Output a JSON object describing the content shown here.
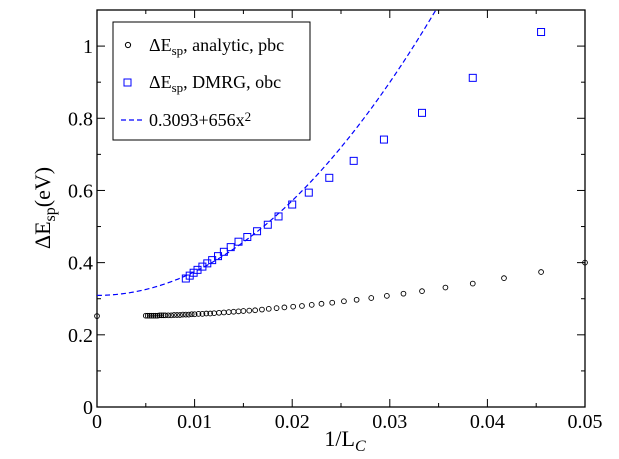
{
  "chart_data": {
    "type": "scatter",
    "xlabel": {
      "main": "1/L",
      "sub": "C"
    },
    "ylabel": {
      "main": "ΔE",
      "sub": "sp",
      "tail": "(eV)"
    },
    "xlim": [
      0,
      0.05
    ],
    "ylim": [
      0,
      1.1
    ],
    "xticks": [
      0,
      0.01,
      0.02,
      0.03,
      0.04,
      0.05
    ],
    "xtick_labels": [
      "0",
      "0.01",
      "0.02",
      "0.03",
      "0.04",
      "0.05"
    ],
    "yticks": [
      0,
      0.2,
      0.4,
      0.6,
      0.8,
      1.0
    ],
    "ytick_labels": [
      "0",
      "0.2",
      "0.4",
      "0.6",
      "0.8",
      "1"
    ],
    "grid": false,
    "legend_position": "top-left",
    "series": [
      {
        "name": "ΔE_sp, analytic, pbc",
        "legend": {
          "main": "ΔE",
          "sub": "sp",
          "tail": ", analytic, pbc"
        },
        "marker": "circle",
        "color": "#000000",
        "x": [
          0.0,
          0.005,
          0.0052,
          0.0054,
          0.0056,
          0.0058,
          0.006,
          0.0062,
          0.0064,
          0.0066,
          0.0068,
          0.007,
          0.0073,
          0.0076,
          0.0079,
          0.0082,
          0.0085,
          0.0088,
          0.0091,
          0.0094,
          0.0097,
          0.01,
          0.0104,
          0.0108,
          0.0112,
          0.0116,
          0.012,
          0.0125,
          0.013,
          0.0135,
          0.014,
          0.0145,
          0.015,
          0.0156,
          0.0162,
          0.0169,
          0.0176,
          0.0184,
          0.0192,
          0.0201,
          0.021,
          0.022,
          0.023,
          0.0241,
          0.0253,
          0.0266,
          0.0281,
          0.0297,
          0.0314,
          0.0333,
          0.0357,
          0.0385,
          0.0417,
          0.0455,
          0.05
        ],
        "y": [
          0.252,
          0.253,
          0.253,
          0.253,
          0.253,
          0.253,
          0.253,
          0.253,
          0.254,
          0.254,
          0.254,
          0.254,
          0.254,
          0.254,
          0.255,
          0.255,
          0.255,
          0.256,
          0.256,
          0.256,
          0.257,
          0.257,
          0.258,
          0.258,
          0.259,
          0.259,
          0.26,
          0.261,
          0.262,
          0.263,
          0.264,
          0.265,
          0.266,
          0.267,
          0.268,
          0.27,
          0.272,
          0.274,
          0.276,
          0.278,
          0.28,
          0.283,
          0.286,
          0.289,
          0.293,
          0.297,
          0.302,
          0.308,
          0.314,
          0.321,
          0.331,
          0.342,
          0.357,
          0.374,
          0.4
        ]
      },
      {
        "name": "ΔE_sp, DMRG, obc",
        "legend": {
          "main": "ΔE",
          "sub": "sp",
          "tail": ", DMRG, obc"
        },
        "marker": "square",
        "color": "#0000ff",
        "x": [
          0.0091,
          0.0095,
          0.0099,
          0.0103,
          0.0108,
          0.0113,
          0.0118,
          0.0124,
          0.013,
          0.0137,
          0.0145,
          0.0154,
          0.0164,
          0.0175,
          0.0186,
          0.02,
          0.0217,
          0.0238,
          0.0263,
          0.0294,
          0.0333,
          0.0385,
          0.0455
        ],
        "y": [
          0.356,
          0.364,
          0.372,
          0.38,
          0.389,
          0.398,
          0.407,
          0.418,
          0.43,
          0.443,
          0.458,
          0.471,
          0.487,
          0.505,
          0.528,
          0.561,
          0.594,
          0.635,
          0.682,
          0.741,
          0.815,
          0.912,
          1.039
        ]
      },
      {
        "name": "0.3093+656x²",
        "legend": {
          "main": "0.3093+656x",
          "sup": "2"
        },
        "marker": "dashed-line",
        "color": "#0000ff",
        "formula": {
          "a": 0.3093,
          "b": 656
        }
      }
    ]
  }
}
